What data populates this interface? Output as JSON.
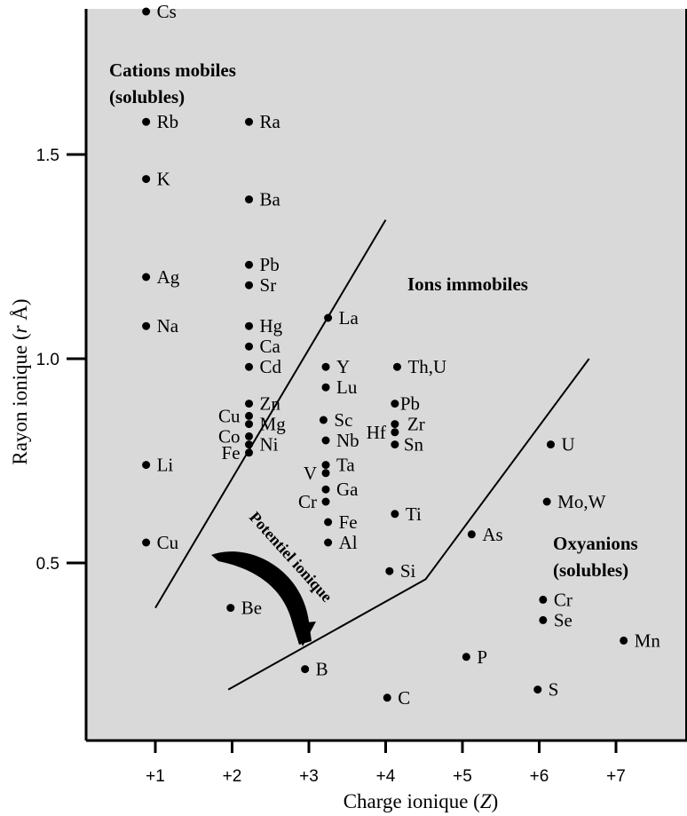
{
  "chart_data": {
    "type": "scatter",
    "xlabel": "Charge ionique (Z)",
    "ylabel": "Rayon ionique (r Å)",
    "x_ticks": [
      "+1",
      "+2",
      "+3",
      "+4",
      "+5",
      "+6",
      "+7"
    ],
    "y_ticks": [
      "0.5",
      "1.0",
      "1.5"
    ],
    "xlim": [
      0.2,
      8.4
    ],
    "ylim": [
      0.07,
      1.97
    ],
    "grid": false,
    "regions": [
      {
        "label": "Cations mobiles (solubles)"
      },
      {
        "label": "Ions immobiles"
      },
      {
        "label": "Oxyanions (solubles)"
      }
    ],
    "arrow_label": "Potentiel ionique",
    "boundaries": [
      {
        "name": "cation-boundary",
        "points": [
          [
            1,
            0.39
          ],
          [
            4.0,
            1.34
          ]
        ]
      },
      {
        "name": "oxyanion-boundary",
        "points": [
          [
            1.95,
            0.19
          ],
          [
            4.52,
            0.46
          ],
          [
            6.65,
            1.0
          ]
        ]
      }
    ],
    "points": [
      {
        "label": "Cs",
        "x": 0.88,
        "y": 1.85
      },
      {
        "label": "Rb",
        "x": 0.88,
        "y": 1.58
      },
      {
        "label": "K",
        "x": 0.88,
        "y": 1.44
      },
      {
        "label": "Ag",
        "x": 0.88,
        "y": 1.2
      },
      {
        "label": "Na",
        "x": 0.88,
        "y": 1.08
      },
      {
        "label": "Li",
        "x": 0.88,
        "y": 0.74
      },
      {
        "label": "Cu",
        "x": 0.88,
        "y": 0.55
      },
      {
        "label": "Ra",
        "x": 2.22,
        "y": 1.58
      },
      {
        "label": "Ba",
        "x": 2.22,
        "y": 1.39
      },
      {
        "label": "Pb",
        "x": 2.22,
        "y": 1.23
      },
      {
        "label": "Sr",
        "x": 2.22,
        "y": 1.18
      },
      {
        "label": "Hg",
        "x": 2.22,
        "y": 1.08
      },
      {
        "label": "Ca",
        "x": 2.22,
        "y": 1.03
      },
      {
        "label": "Cd",
        "x": 2.22,
        "y": 0.98
      },
      {
        "label": "Zn",
        "x": 2.22,
        "y": 0.89
      },
      {
        "label": "Mg",
        "x": 2.22,
        "y": 0.84
      },
      {
        "label": "Ni",
        "x": 2.22,
        "y": 0.79
      },
      {
        "label": "Cu",
        "x": 2.22,
        "y": 0.86
      },
      {
        "label": "Co",
        "x": 2.22,
        "y": 0.81
      },
      {
        "label": "Fe",
        "x": 2.22,
        "y": 0.77
      },
      {
        "label": "Be",
        "x": 1.98,
        "y": 0.39
      },
      {
        "label": "La",
        "x": 3.25,
        "y": 1.1
      },
      {
        "label": "Y",
        "x": 3.22,
        "y": 0.98
      },
      {
        "label": "Lu",
        "x": 3.22,
        "y": 0.93
      },
      {
        "label": "Sc",
        "x": 3.19,
        "y": 0.85
      },
      {
        "label": "Nb",
        "x": 3.22,
        "y": 0.8
      },
      {
        "label": "Ta",
        "x": 3.22,
        "y": 0.74
      },
      {
        "label": "V",
        "x": 3.22,
        "y": 0.72
      },
      {
        "label": "Ga",
        "x": 3.22,
        "y": 0.68
      },
      {
        "label": "Cr",
        "x": 3.22,
        "y": 0.65
      },
      {
        "label": "Fe",
        "x": 3.25,
        "y": 0.6
      },
      {
        "label": "Al",
        "x": 3.25,
        "y": 0.55
      },
      {
        "label": "B",
        "x": 2.95,
        "y": 0.24
      },
      {
        "label": "Th,U",
        "x": 4.15,
        "y": 0.98
      },
      {
        "label": "Pb",
        "x": 4.12,
        "y": 0.89
      },
      {
        "label": "Zr",
        "x": 4.12,
        "y": 0.84
      },
      {
        "label": "Hf",
        "x": 4.12,
        "y": 0.82
      },
      {
        "label": "Sn",
        "x": 4.12,
        "y": 0.79
      },
      {
        "label": "Ti",
        "x": 4.12,
        "y": 0.62
      },
      {
        "label": "Si",
        "x": 4.05,
        "y": 0.48
      },
      {
        "label": "C",
        "x": 4.02,
        "y": 0.17
      },
      {
        "label": "U",
        "x": 6.15,
        "y": 0.79
      },
      {
        "label": "Mo,W",
        "x": 6.1,
        "y": 0.65
      },
      {
        "label": "As",
        "x": 5.12,
        "y": 0.57
      },
      {
        "label": "Cr",
        "x": 6.05,
        "y": 0.41
      },
      {
        "label": "Se",
        "x": 6.05,
        "y": 0.36
      },
      {
        "label": "Mn",
        "x": 7.1,
        "y": 0.31
      },
      {
        "label": "P",
        "x": 5.05,
        "y": 0.27
      },
      {
        "label": "S",
        "x": 5.98,
        "y": 0.19
      }
    ]
  }
}
